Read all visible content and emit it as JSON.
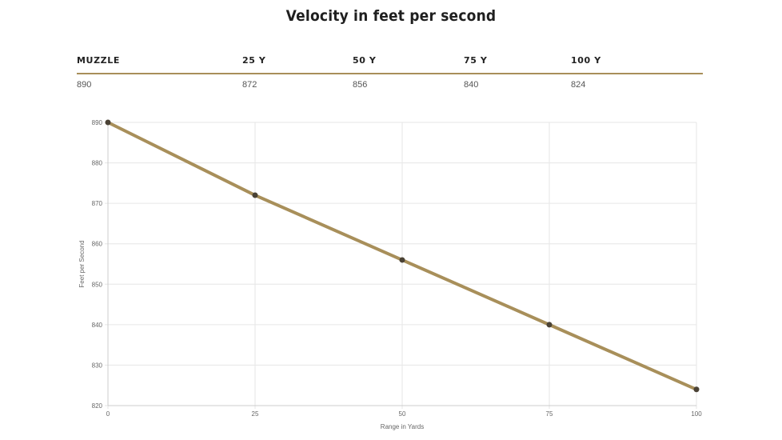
{
  "page": {
    "title": "Velocity in feet per second"
  },
  "table": {
    "headers": [
      "MUZZLE",
      "25 Y",
      "50 Y",
      "75 Y",
      "100 Y"
    ],
    "values": [
      "890",
      "872",
      "856",
      "840",
      "824"
    ]
  },
  "colors": {
    "line": "#a88f5a",
    "point": "#4a4235",
    "grid": "#e6e6e6",
    "axis_text": "#666666",
    "rule": "#a88f5a"
  },
  "chart_data": {
    "type": "line",
    "x": [
      0,
      25,
      50,
      75,
      100
    ],
    "series": [
      {
        "values": [
          890,
          872,
          856,
          840,
          824
        ]
      }
    ],
    "xlabel": "Range in Yards",
    "ylabel": "Feet per Second",
    "xlim": [
      0,
      100
    ],
    "ylim": [
      820,
      890
    ],
    "x_ticks": [
      "0",
      "25",
      "50",
      "75",
      "100"
    ],
    "y_ticks": [
      "820",
      "830",
      "840",
      "850",
      "860",
      "870",
      "880",
      "890"
    ],
    "grid": true,
    "legend": "none"
  }
}
